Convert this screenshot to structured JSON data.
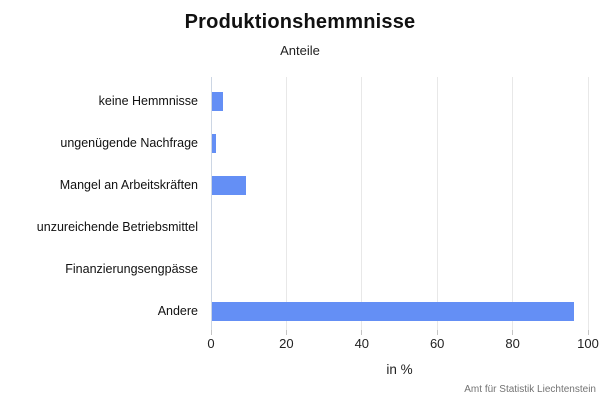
{
  "header": {
    "title": "Produktionshemmnisse",
    "subtitle": "Anteile"
  },
  "footer": {
    "source": "Amt für Statistik Liechtenstein"
  },
  "colors": {
    "bar": "#648ff5",
    "gridline": "#e8e8e8",
    "zeroline": "#ccd6e4",
    "tick": "#c4c4c4",
    "text": "#111111",
    "source_text": "#737373"
  },
  "chart_data": {
    "type": "bar",
    "orientation": "horizontal",
    "title": "Produktionshemmnisse",
    "subtitle": "Anteile",
    "categories": [
      "keine Hemmnisse",
      "ungenügende Nachfrage",
      "Mangel an Arbeitskräften",
      "unzureichende Betriebsmittel",
      "Finanzierungsengpässe",
      "Andere"
    ],
    "values": [
      3,
      1,
      9,
      0,
      0,
      96
    ],
    "xlabel": "in %",
    "ylabel": "",
    "xlim": [
      0,
      100
    ],
    "xticks": [
      0,
      20,
      40,
      60,
      80,
      100
    ],
    "grid": true,
    "legend": false
  }
}
